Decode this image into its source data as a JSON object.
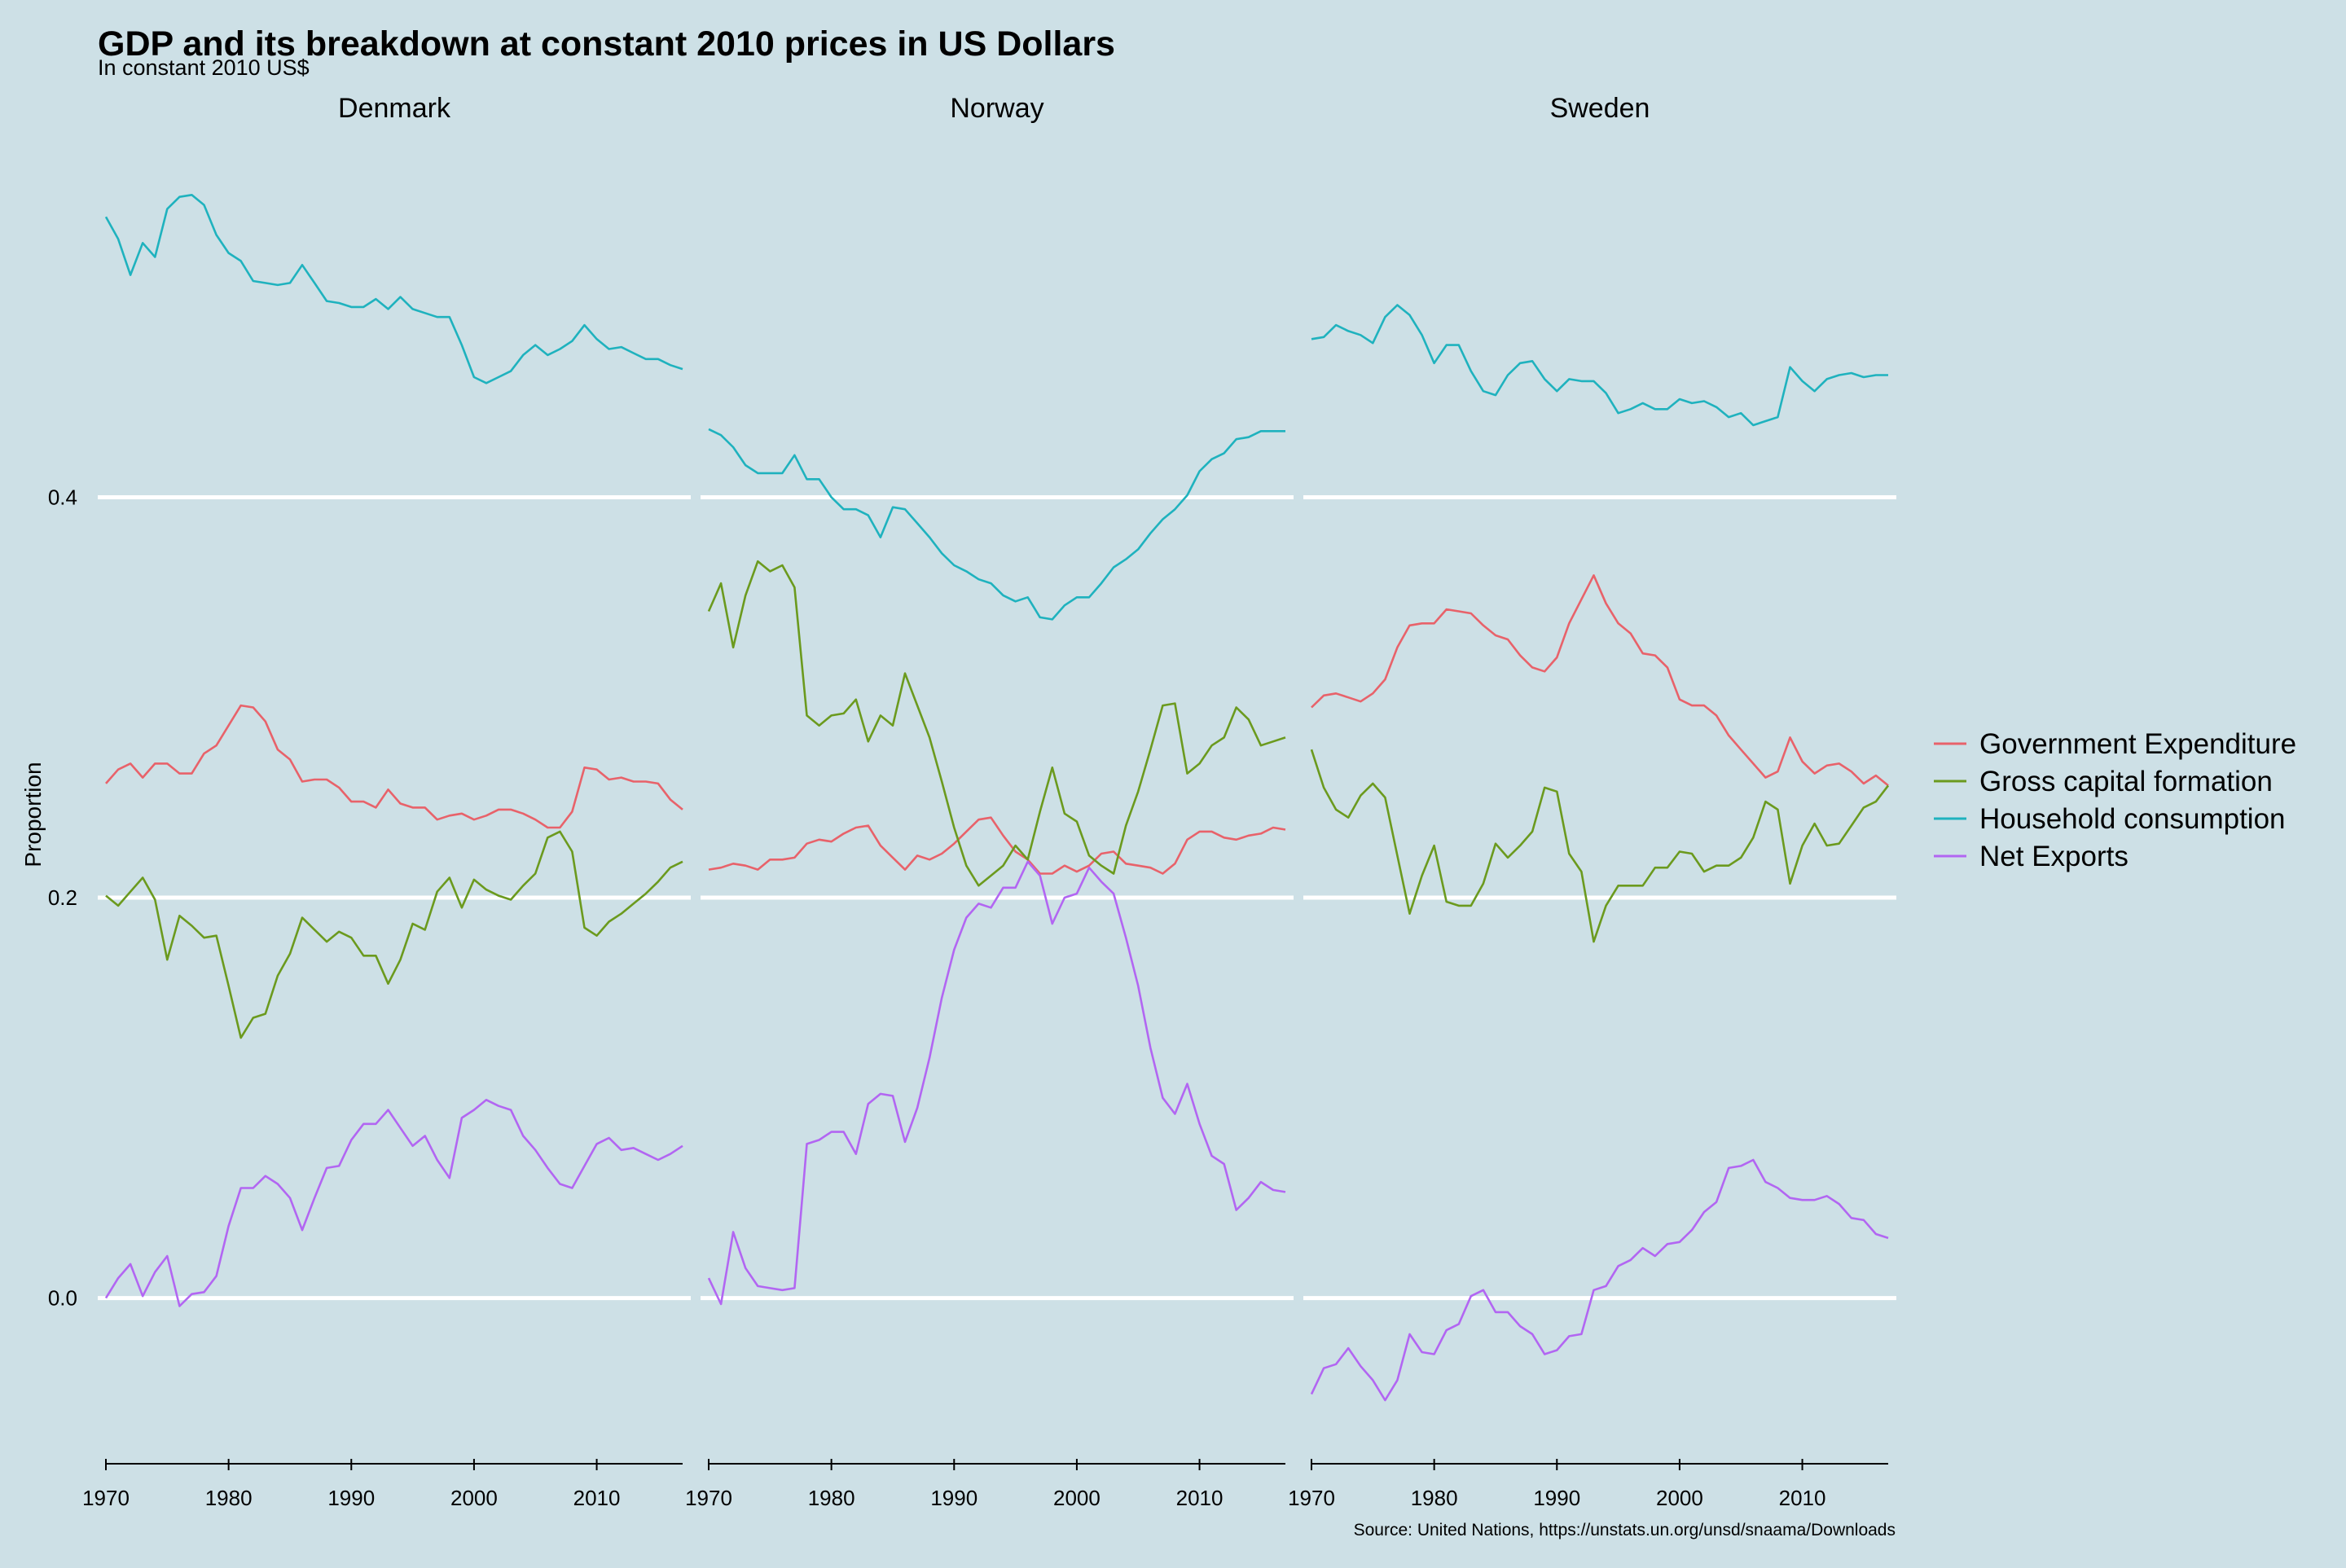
{
  "chart_data": {
    "type": "line",
    "title": "GDP and its breakdown at constant 2010 prices in US Dollars",
    "subtitle": "In constant 2010 US$",
    "caption": "Source: United Nations, https://unstats.un.org/unsd/snaama/Downloads",
    "xlabel": "",
    "ylabel": "Proportion",
    "x_start": 1970,
    "x_end": 2017,
    "xlim": [
      1970,
      2017
    ],
    "ylim": [
      -0.075,
      0.58
    ],
    "x_ticks": [
      1970,
      1980,
      1990,
      2000,
      2010
    ],
    "y_ticks": [
      0.0,
      0.2,
      0.4
    ],
    "y_tick_labels": [
      "0.0",
      "0.2",
      "0.4"
    ],
    "grid": "horizontal major lines only",
    "legend_position": "right",
    "series_colors": {
      "Government Expenditure": "#e8626a",
      "Gross capital formation": "#6b9a1e",
      "Household consumption": "#1fb2be",
      "Net Exports": "#b266f2"
    },
    "panels": [
      {
        "name": "Denmark",
        "series": [
          {
            "name": "Government Expenditure",
            "values": [
              0.257,
              0.264,
              0.267,
              0.26,
              0.267,
              0.267,
              0.262,
              0.262,
              0.272,
              0.276,
              0.286,
              0.296,
              0.295,
              0.288,
              0.274,
              0.269,
              0.258,
              0.259,
              0.259,
              0.255,
              0.248,
              0.248,
              0.245,
              0.254,
              0.247,
              0.245,
              0.245,
              0.239,
              0.241,
              0.242,
              0.239,
              0.241,
              0.244,
              0.244,
              0.242,
              0.239,
              0.235,
              0.235,
              0.243,
              0.265,
              0.264,
              0.259,
              0.26,
              0.258,
              0.258,
              0.257,
              0.249,
              0.244
            ]
          },
          {
            "name": "Gross capital formation",
            "values": [
              0.201,
              0.196,
              0.203,
              0.21,
              0.199,
              0.169,
              0.191,
              0.186,
              0.18,
              0.181,
              0.156,
              0.13,
              0.14,
              0.142,
              0.161,
              0.172,
              0.19,
              0.184,
              0.178,
              0.183,
              0.18,
              0.171,
              0.171,
              0.157,
              0.169,
              0.187,
              0.184,
              0.203,
              0.21,
              0.195,
              0.209,
              0.204,
              0.201,
              0.199,
              0.206,
              0.212,
              0.23,
              0.233,
              0.223,
              0.185,
              0.181,
              0.188,
              0.192,
              0.197,
              0.202,
              0.208,
              0.215,
              0.218
            ]
          },
          {
            "name": "Household consumption",
            "values": [
              0.54,
              0.529,
              0.511,
              0.527,
              0.52,
              0.544,
              0.55,
              0.551,
              0.546,
              0.531,
              0.522,
              0.518,
              0.508,
              0.507,
              0.506,
              0.507,
              0.516,
              0.507,
              0.498,
              0.497,
              0.495,
              0.495,
              0.499,
              0.494,
              0.5,
              0.494,
              0.492,
              0.49,
              0.49,
              0.476,
              0.46,
              0.457,
              0.46,
              0.463,
              0.471,
              0.476,
              0.471,
              0.474,
              0.478,
              0.486,
              0.479,
              0.474,
              0.475,
              0.472,
              0.469,
              0.469,
              0.466,
              0.464
            ]
          },
          {
            "name": "Net Exports",
            "values": [
              0.0,
              0.01,
              0.017,
              0.001,
              0.013,
              0.021,
              -0.004,
              0.002,
              0.003,
              0.011,
              0.036,
              0.055,
              0.055,
              0.061,
              0.057,
              0.05,
              0.034,
              0.05,
              0.065,
              0.066,
              0.079,
              0.087,
              0.087,
              0.094,
              0.085,
              0.076,
              0.081,
              0.069,
              0.06,
              0.09,
              0.094,
              0.099,
              0.096,
              0.094,
              0.081,
              0.074,
              0.065,
              0.057,
              0.055,
              0.066,
              0.077,
              0.08,
              0.074,
              0.075,
              0.072,
              0.069,
              0.072,
              0.076
            ]
          }
        ]
      },
      {
        "name": "Norway",
        "series": [
          {
            "name": "Government Expenditure",
            "values": [
              0.214,
              0.215,
              0.217,
              0.216,
              0.214,
              0.219,
              0.219,
              0.22,
              0.227,
              0.229,
              0.228,
              0.232,
              0.235,
              0.236,
              0.226,
              0.22,
              0.214,
              0.221,
              0.219,
              0.222,
              0.227,
              0.233,
              0.239,
              0.24,
              0.231,
              0.223,
              0.219,
              0.212,
              0.212,
              0.216,
              0.213,
              0.216,
              0.222,
              0.223,
              0.217,
              0.216,
              0.215,
              0.212,
              0.217,
              0.229,
              0.233,
              0.233,
              0.23,
              0.229,
              0.231,
              0.232,
              0.235,
              0.234
            ]
          },
          {
            "name": "Gross capital formation",
            "values": [
              0.343,
              0.357,
              0.325,
              0.351,
              0.368,
              0.363,
              0.366,
              0.355,
              0.291,
              0.286,
              0.291,
              0.292,
              0.299,
              0.278,
              0.291,
              0.286,
              0.312,
              0.296,
              0.28,
              0.258,
              0.235,
              0.216,
              0.206,
              0.211,
              0.216,
              0.226,
              0.219,
              0.243,
              0.265,
              0.242,
              0.238,
              0.221,
              0.216,
              0.212,
              0.236,
              0.253,
              0.274,
              0.296,
              0.297,
              0.262,
              0.267,
              0.276,
              0.28,
              0.295,
              0.289,
              0.276,
              0.278,
              0.28
            ]
          },
          {
            "name": "Household consumption",
            "values": [
              0.434,
              0.431,
              0.425,
              0.416,
              0.412,
              0.412,
              0.412,
              0.421,
              0.409,
              0.409,
              0.4,
              0.394,
              0.394,
              0.391,
              0.38,
              0.395,
              0.394,
              0.387,
              0.38,
              0.372,
              0.366,
              0.363,
              0.359,
              0.357,
              0.351,
              0.348,
              0.35,
              0.34,
              0.339,
              0.346,
              0.35,
              0.35,
              0.357,
              0.365,
              0.369,
              0.374,
              0.382,
              0.389,
              0.394,
              0.401,
              0.413,
              0.419,
              0.422,
              0.429,
              0.43,
              0.433,
              0.433,
              0.433
            ]
          },
          {
            "name": "Net Exports",
            "values": [
              0.01,
              -0.003,
              0.033,
              0.015,
              0.006,
              0.005,
              0.004,
              0.005,
              0.077,
              0.079,
              0.083,
              0.083,
              0.072,
              0.097,
              0.102,
              0.101,
              0.078,
              0.095,
              0.12,
              0.15,
              0.174,
              0.19,
              0.197,
              0.195,
              0.205,
              0.205,
              0.218,
              0.211,
              0.187,
              0.2,
              0.202,
              0.215,
              0.208,
              0.202,
              0.18,
              0.156,
              0.125,
              0.1,
              0.092,
              0.107,
              0.087,
              0.071,
              0.067,
              0.044,
              0.05,
              0.058,
              0.054,
              0.053
            ]
          }
        ]
      },
      {
        "name": "Sweden",
        "series": [
          {
            "name": "Government Expenditure",
            "values": [
              0.295,
              0.301,
              0.302,
              0.3,
              0.298,
              0.302,
              0.309,
              0.325,
              0.336,
              0.337,
              0.337,
              0.344,
              0.343,
              0.342,
              0.336,
              0.331,
              0.329,
              0.321,
              0.315,
              0.313,
              0.32,
              0.337,
              0.349,
              0.361,
              0.347,
              0.337,
              0.332,
              0.322,
              0.321,
              0.315,
              0.299,
              0.296,
              0.296,
              0.291,
              0.281,
              0.274,
              0.267,
              0.26,
              0.263,
              0.28,
              0.268,
              0.262,
              0.266,
              0.267,
              0.263,
              0.257,
              0.261,
              0.256
            ]
          },
          {
            "name": "Gross capital formation",
            "values": [
              0.274,
              0.255,
              0.244,
              0.24,
              0.251,
              0.257,
              0.25,
              0.221,
              0.192,
              0.211,
              0.226,
              0.198,
              0.196,
              0.196,
              0.207,
              0.227,
              0.22,
              0.226,
              0.233,
              0.255,
              0.253,
              0.222,
              0.213,
              0.178,
              0.196,
              0.206,
              0.206,
              0.206,
              0.215,
              0.215,
              0.223,
              0.222,
              0.213,
              0.216,
              0.216,
              0.22,
              0.23,
              0.248,
              0.244,
              0.207,
              0.226,
              0.237,
              0.226,
              0.227,
              0.236,
              0.245,
              0.248,
              0.256
            ]
          },
          {
            "name": "Household consumption",
            "values": [
              0.479,
              0.48,
              0.486,
              0.483,
              0.481,
              0.477,
              0.49,
              0.496,
              0.491,
              0.481,
              0.467,
              0.476,
              0.476,
              0.463,
              0.453,
              0.451,
              0.461,
              0.467,
              0.468,
              0.459,
              0.453,
              0.459,
              0.458,
              0.458,
              0.452,
              0.442,
              0.444,
              0.447,
              0.444,
              0.444,
              0.449,
              0.447,
              0.448,
              0.445,
              0.44,
              0.442,
              0.436,
              0.438,
              0.44,
              0.465,
              0.458,
              0.453,
              0.459,
              0.461,
              0.462,
              0.46,
              0.461,
              0.461
            ]
          },
          {
            "name": "Net Exports",
            "values": [
              -0.048,
              -0.035,
              -0.033,
              -0.025,
              -0.034,
              -0.041,
              -0.051,
              -0.041,
              -0.018,
              -0.027,
              -0.028,
              -0.016,
              -0.013,
              0.001,
              0.004,
              -0.007,
              -0.007,
              -0.014,
              -0.018,
              -0.028,
              -0.026,
              -0.019,
              -0.018,
              0.004,
              0.006,
              0.016,
              0.019,
              0.025,
              0.021,
              0.027,
              0.028,
              0.034,
              0.043,
              0.048,
              0.065,
              0.066,
              0.069,
              0.058,
              0.055,
              0.05,
              0.049,
              0.049,
              0.051,
              0.047,
              0.04,
              0.039,
              0.032,
              0.03
            ]
          }
        ]
      }
    ]
  }
}
